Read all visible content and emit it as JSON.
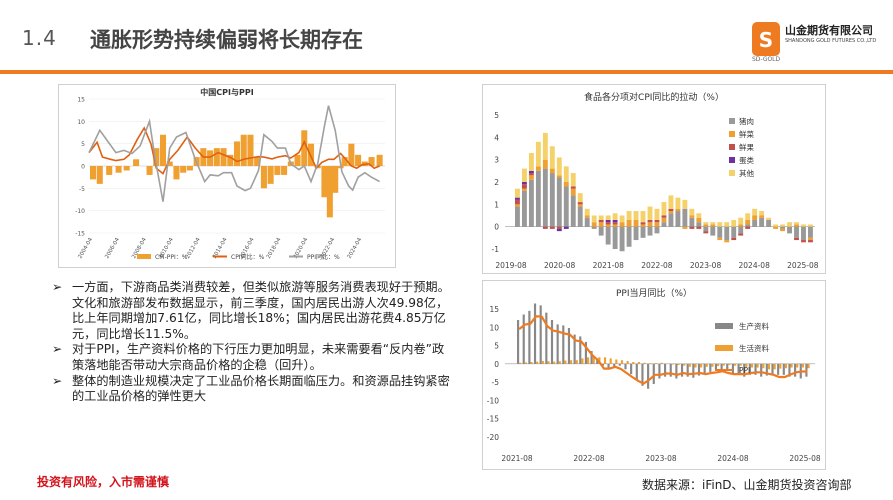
{
  "header": {
    "number": "1.4",
    "title": "通胀形势持续偏弱将长期存在",
    "logo_name": "山金期货有限公司",
    "logo_sub": "SHANDONG GOLD FUTURES CO.,LTD",
    "logo_tag": "SD-GOLD",
    "accent": "#ee7b21"
  },
  "bullets": [
    "一方面，下游商品类消费较差，但类似旅游等服务消费表现好于预期。文化和旅游部发布数据显示，前三季度，国内居民出游人次49.98亿，比上年同期增加7.61亿，同比增长18%；国内居民出游花费4.85万亿元，同比增长11.5%。",
    "对于PPI，生产资料价格的下行压力更加明显，未来需要看“反内卷”政策落地能否带动大宗商品价格的企稳（回升）。",
    "整体的制造业规模决定了工业品价格长期面临压力。和资源品挂钩紧密的工业品价格的弹性更大"
  ],
  "footer": {
    "risk": "投资有风险，入市需谨慎",
    "source": "数据来源：iFinD、山金期货投资咨询部"
  },
  "chart_data": [
    {
      "type": "line",
      "title": "中国CPI与PPI",
      "x_ticks": [
        "2004-04",
        "2006-04",
        "2008-04",
        "2010-04",
        "2012-04",
        "2014-04",
        "2016-04",
        "2018-04",
        "2020-04",
        "2022-04",
        "2024-04"
      ],
      "ylim": [
        -15,
        15
      ],
      "y_ticks": [
        15,
        10,
        5,
        0,
        -5,
        -10,
        -15
      ],
      "series": [
        {
          "name": "CPI-PPI：%",
          "kind": "bar",
          "color": "#f0a030",
          "points": [
            [
              2004.3,
              -3
            ],
            [
              2004.8,
              -4
            ],
            [
              2005.5,
              -2
            ],
            [
              2006.2,
              -1.5
            ],
            [
              2006.8,
              -1
            ],
            [
              2007.5,
              1.5
            ],
            [
              2008.0,
              0
            ],
            [
              2008.5,
              -2
            ],
            [
              2009.0,
              4
            ],
            [
              2009.5,
              7
            ],
            [
              2010.0,
              1
            ],
            [
              2010.5,
              -3
            ],
            [
              2011.0,
              -1.5
            ],
            [
              2011.5,
              -1
            ],
            [
              2012.0,
              2
            ],
            [
              2012.5,
              4
            ],
            [
              2013.0,
              3.5
            ],
            [
              2013.5,
              4
            ],
            [
              2014.0,
              4
            ],
            [
              2014.5,
              2.5
            ],
            [
              2015.0,
              5.5
            ],
            [
              2015.5,
              7
            ],
            [
              2016.0,
              7
            ],
            [
              2016.5,
              2
            ],
            [
              2017.0,
              -5
            ],
            [
              2017.5,
              -4
            ],
            [
              2018.0,
              -2
            ],
            [
              2018.5,
              -2
            ],
            [
              2019.0,
              1
            ],
            [
              2019.5,
              2.5
            ],
            [
              2020.0,
              8
            ],
            [
              2020.5,
              5
            ],
            [
              2021.0,
              -0.5
            ],
            [
              2021.5,
              -7
            ],
            [
              2021.9,
              -11.5
            ],
            [
              2022.3,
              -6
            ],
            [
              2022.7,
              -0.5
            ],
            [
              2023.0,
              2
            ],
            [
              2023.5,
              5
            ],
            [
              2024.0,
              2.5
            ],
            [
              2024.5,
              1
            ],
            [
              2025.0,
              2
            ],
            [
              2025.6,
              2.5
            ]
          ]
        },
        {
          "name": "CPI同比：%",
          "kind": "line",
          "color": "#e06010",
          "points": [
            [
              2004.0,
              3
            ],
            [
              2004.6,
              5.3
            ],
            [
              2005.0,
              2
            ],
            [
              2005.6,
              1.5
            ],
            [
              2006.0,
              1.2
            ],
            [
              2006.6,
              1.5
            ],
            [
              2007.0,
              2.5
            ],
            [
              2007.6,
              6
            ],
            [
              2008.1,
              8.5
            ],
            [
              2008.6,
              5
            ],
            [
              2009.0,
              -0.5
            ],
            [
              2009.5,
              -1.7
            ],
            [
              2010.0,
              1.5
            ],
            [
              2010.6,
              3.5
            ],
            [
              2011.3,
              6.5
            ],
            [
              2011.9,
              4
            ],
            [
              2012.5,
              2
            ],
            [
              2013.0,
              2
            ],
            [
              2013.6,
              3
            ],
            [
              2014.0,
              2.5
            ],
            [
              2014.6,
              1.8
            ],
            [
              2015.0,
              1
            ],
            [
              2015.6,
              1.6
            ],
            [
              2016.0,
              1.8
            ],
            [
              2016.6,
              2.1
            ],
            [
              2017.0,
              2
            ],
            [
              2017.6,
              1.6
            ],
            [
              2018.0,
              2
            ],
            [
              2018.6,
              2.3
            ],
            [
              2019.0,
              1.8
            ],
            [
              2019.6,
              3
            ],
            [
              2020.0,
              5.4
            ],
            [
              2020.6,
              1.5
            ],
            [
              2020.9,
              -0.5
            ],
            [
              2021.3,
              0.8
            ],
            [
              2021.8,
              1.5
            ],
            [
              2022.2,
              1.5
            ],
            [
              2022.7,
              2.8
            ],
            [
              2023.0,
              1.8
            ],
            [
              2023.5,
              0
            ],
            [
              2023.9,
              -0.5
            ],
            [
              2024.3,
              0.3
            ],
            [
              2024.8,
              0.5
            ],
            [
              2025.2,
              -0.5
            ],
            [
              2025.6,
              0
            ]
          ]
        },
        {
          "name": "PPI同比：%",
          "kind": "line",
          "color": "#a0a0a0",
          "points": [
            [
              2004.0,
              3
            ],
            [
              2004.8,
              8
            ],
            [
              2005.4,
              5.5
            ],
            [
              2006.0,
              3
            ],
            [
              2006.6,
              3.5
            ],
            [
              2007.2,
              2.8
            ],
            [
              2007.8,
              4.5
            ],
            [
              2008.5,
              10
            ],
            [
              2008.9,
              2
            ],
            [
              2009.5,
              -8
            ],
            [
              2010.0,
              4
            ],
            [
              2010.5,
              6.5
            ],
            [
              2011.2,
              7.5
            ],
            [
              2011.9,
              1.5
            ],
            [
              2012.6,
              -3.5
            ],
            [
              2013.0,
              -2
            ],
            [
              2013.6,
              -2.2
            ],
            [
              2014.0,
              -1.5
            ],
            [
              2014.6,
              -1.5
            ],
            [
              2015.0,
              -4.5
            ],
            [
              2015.6,
              -5.5
            ],
            [
              2016.0,
              -5
            ],
            [
              2016.6,
              -1
            ],
            [
              2017.0,
              7
            ],
            [
              2017.6,
              5.5
            ],
            [
              2018.0,
              4
            ],
            [
              2018.6,
              4
            ],
            [
              2019.0,
              0.5
            ],
            [
              2019.6,
              -0.8
            ],
            [
              2020.0,
              0
            ],
            [
              2020.5,
              -3.5
            ],
            [
              2021.0,
              0.5
            ],
            [
              2021.5,
              9
            ],
            [
              2021.8,
              13.5
            ],
            [
              2022.3,
              8
            ],
            [
              2022.8,
              -1.3
            ],
            [
              2023.3,
              -4.5
            ],
            [
              2023.6,
              -5.4
            ],
            [
              2024.0,
              -2.5
            ],
            [
              2024.5,
              -1.5
            ],
            [
              2025.0,
              -2.5
            ],
            [
              2025.6,
              -3.5
            ]
          ]
        }
      ]
    },
    {
      "type": "bar",
      "title": "食品各分项对CPI同比的拉动（%）",
      "x_ticks": [
        "2019-08",
        "2020-08",
        "2021-08",
        "2022-08",
        "2023-08",
        "2024-08",
        "2025-08"
      ],
      "ylim": [
        -1,
        5
      ],
      "y_ticks": [
        5,
        4,
        3,
        2,
        1,
        0,
        -1
      ],
      "legend": [
        "猪肉",
        "鲜菜",
        "鲜果",
        "蛋类",
        "其他"
      ],
      "series": [
        {
          "name": "猪肉",
          "color": "#999999",
          "values": [
            0.9,
            1.6,
            2.1,
            2.5,
            2.6,
            2.4,
            2.2,
            1.8,
            1.4,
            0.9,
            0.4,
            -0.1,
            -0.4,
            -0.8,
            -1.0,
            -1.1,
            -0.9,
            -0.6,
            -0.5,
            -0.4,
            -0.3,
            0.2,
            0.6,
            0.7,
            0.8,
            0.4,
            0.2,
            -0.2,
            -0.4,
            -0.5,
            -0.6,
            -0.5,
            -0.3,
            0.1,
            0.3,
            0.4,
            0.3,
            0.0,
            -0.1,
            -0.3,
            -0.5,
            -0.6,
            -0.5
          ]
        },
        {
          "name": "鲜菜",
          "color": "#f0a030",
          "values": [
            0.1,
            0.1,
            0.2,
            0.2,
            0.4,
            0.2,
            0.1,
            0.2,
            0.3,
            0.1,
            0.1,
            0.2,
            0.2,
            0.1,
            0.1,
            0.2,
            0.3,
            0.3,
            0.1,
            0.2,
            0.2,
            0.2,
            0.1,
            0.1,
            -0.1,
            0.1,
            0.2,
            0.1,
            0.1,
            -0.1,
            -0.1,
            0.0,
            0.1,
            0.2,
            0.2,
            0.1,
            0.0,
            -0.1,
            -0.1,
            0.0,
            0.1,
            0.0,
            -0.1
          ]
        },
        {
          "name": "鲜果",
          "color": "#c0504d",
          "values": [
            0.2,
            0.2,
            0.1,
            0.0,
            -0.1,
            -0.1,
            -0.1,
            0.0,
            0.1,
            0.1,
            0.0,
            0.0,
            0.1,
            0.1,
            0.1,
            0.0,
            0.0,
            0.0,
            0.1,
            0.1,
            0.1,
            0.1,
            0.1,
            0.0,
            0.0,
            -0.1,
            -0.1,
            -0.1,
            0.0,
            0.0,
            0.0,
            -0.1,
            -0.1,
            -0.1,
            0.0,
            0.0,
            0.0,
            0.0,
            0.0,
            0.0,
            -0.1,
            -0.1,
            -0.1
          ]
        },
        {
          "name": "蛋类",
          "color": "#7030a0",
          "values": [
            0.1,
            0.1,
            0.1,
            0.0,
            0.0,
            0.0,
            -0.1,
            -0.1,
            0.0,
            0.0,
            0.0,
            0.0,
            0.0,
            0.1,
            0.1,
            0.0,
            0.0,
            0.0,
            0.0,
            0.0,
            0.0,
            0.0,
            0.0,
            0.0,
            0.0,
            0.0,
            0.0,
            0.0,
            0.0,
            0.0,
            0.0,
            0.0,
            0.0,
            0.0,
            0.0,
            0.0,
            0.0,
            0.0,
            0.0,
            0.0,
            0.0,
            0.0,
            0.0
          ]
        },
        {
          "name": "其他",
          "color": "#f5d16a",
          "values": [
            0.4,
            0.6,
            0.8,
            1.1,
            1.2,
            1.0,
            0.8,
            0.7,
            0.6,
            0.4,
            0.3,
            0.3,
            0.2,
            0.2,
            0.3,
            0.3,
            0.4,
            0.4,
            0.5,
            0.6,
            0.5,
            0.6,
            0.6,
            0.5,
            0.4,
            0.3,
            0.2,
            0.1,
            0.1,
            0.2,
            0.2,
            0.3,
            0.3,
            0.3,
            0.3,
            0.2,
            0.1,
            0.1,
            0.1,
            0.2,
            0.1,
            0.1,
            0.1
          ]
        }
      ]
    },
    {
      "type": "bar",
      "title": "PPI当月同比（%）",
      "x_ticks": [
        "2021-08",
        "2022-08",
        "2023-08",
        "2024-08",
        "2025-08"
      ],
      "ylim": [
        -20,
        15
      ],
      "y_ticks": [
        15,
        10,
        5,
        0,
        -5,
        -10,
        -15,
        -20
      ],
      "legend": [
        "生产资料",
        "生活资料",
        "PPI"
      ],
      "series": [
        {
          "name": "生产资料",
          "kind": "bar",
          "color": "#888888",
          "values": [
            12.0,
            13.5,
            14.5,
            16.5,
            16.0,
            14.0,
            12.0,
            10.8,
            10.5,
            9.8,
            8.0,
            7.5,
            6.0,
            3.5,
            1.5,
            -0.5,
            -1.5,
            -1.0,
            -0.5,
            -1.5,
            -2.8,
            -4.5,
            -6.0,
            -6.8,
            -5.5,
            -4.0,
            -3.5,
            -3.5,
            -4.0,
            -3.5,
            -3.5,
            -3.8,
            -3.2,
            -3.0,
            -2.2,
            -1.8,
            -1.5,
            -1.5,
            -3.0,
            -3.0,
            -3.5,
            -3.0,
            -3.0,
            -3.5,
            -3.2,
            -2.8,
            -3.0,
            -3.0,
            -3.5,
            -3.5,
            -4.0,
            -3.5
          ]
        },
        {
          "name": "生活资料",
          "kind": "bar",
          "color": "#f0a030",
          "values": [
            0.3,
            0.4,
            0.5,
            0.6,
            0.8,
            0.7,
            0.6,
            0.7,
            0.9,
            1.0,
            1.0,
            1.5,
            1.8,
            1.8,
            1.8,
            1.8,
            1.5,
            1.2,
            1.0,
            0.8,
            0.5,
            0.5,
            0.3,
            0.2,
            0.2,
            0.3,
            0.0,
            -0.2,
            -0.3,
            -0.5,
            -0.8,
            -1.0,
            -1.0,
            -0.8,
            -0.8,
            -0.6,
            -0.5,
            -0.3,
            -0.5,
            -0.5,
            -0.8,
            -1.0,
            -1.0,
            -1.2,
            -1.5,
            -1.5,
            -1.3,
            -1.2,
            -1.0,
            -1.0,
            -1.0,
            -1.2
          ]
        },
        {
          "name": "PPI",
          "kind": "line",
          "color": "#ee7b21",
          "values": [
            9.5,
            10.7,
            11.0,
            13.0,
            12.9,
            10.3,
            9.1,
            8.8,
            8.3,
            8.0,
            6.4,
            6.1,
            4.2,
            2.3,
            0.9,
            -1.3,
            -1.3,
            -0.8,
            -1.4,
            -2.5,
            -3.6,
            -4.6,
            -5.4,
            -4.4,
            -3.0,
            -3.0,
            -2.6,
            -2.7,
            -3.0,
            -2.5,
            -2.8,
            -2.7,
            -2.5,
            -2.8,
            -2.5,
            -2.3,
            -2.0,
            -2.5,
            -2.8,
            -2.8,
            -2.8,
            -2.5,
            -2.3,
            -2.3,
            -2.7,
            -3.0,
            -3.6,
            -3.6,
            -2.9,
            -2.3,
            -2.1,
            -2.1
          ]
        }
      ]
    }
  ]
}
